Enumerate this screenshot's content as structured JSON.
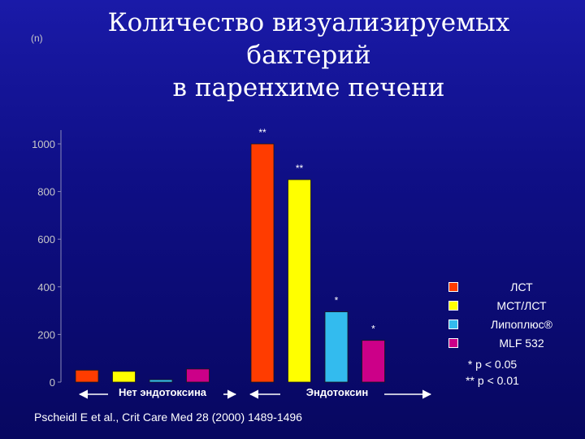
{
  "slide": {
    "title_line1": "Количество визуализируемых бактерий",
    "title_line2": "в паренхиме печени",
    "unit_label": "(n)",
    "source": "Pscheidl E et al., Crit Care Med 28 (2000) 1489-1496"
  },
  "colors": {
    "background": "#10108a",
    "axis": "#8a8ab8",
    "arrow": "#ffffff"
  },
  "chart_data": {
    "type": "bar",
    "groups": [
      "Нет эндотоксина",
      "Эндотоксин"
    ],
    "ylim": [
      0,
      1000
    ],
    "yticks": [
      0,
      200,
      400,
      600,
      800,
      1000
    ],
    "ytick_labels": [
      "0",
      "200",
      "400",
      "600",
      "800",
      "1000"
    ],
    "grid": false,
    "legend_position": "right",
    "series": [
      {
        "name": "ЛСТ",
        "color": "#ff3c00",
        "values": [
          50,
          1000
        ],
        "significance": [
          "",
          "**"
        ]
      },
      {
        "name": "МСТ/ЛСТ",
        "color": "#ffff00",
        "values": [
          45,
          850
        ],
        "significance": [
          "",
          "**"
        ]
      },
      {
        "name": "Липоплюс®",
        "color": "#33bbee",
        "values": [
          10,
          295
        ],
        "significance": [
          "",
          "*"
        ]
      },
      {
        "name": "MLF 532",
        "color": "#cc0088",
        "values": [
          55,
          175
        ],
        "significance": [
          "",
          "*"
        ]
      }
    ],
    "notes": [
      "* p < 0.05",
      "** p < 0.01"
    ]
  }
}
